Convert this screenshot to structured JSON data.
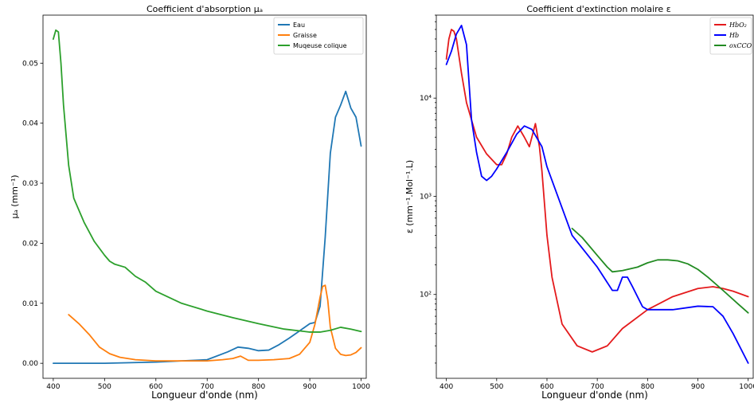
{
  "chart_data": [
    {
      "type": "line",
      "title": "Coefficient d'absorption μₐ",
      "xlabel": "Longueur d'onde (nm)",
      "ylabel": "μₐ (mm⁻¹)",
      "xlim": [
        380,
        1010
      ],
      "ylim": [
        -0.0025,
        0.058
      ],
      "yscale": "linear",
      "xticks": [
        400,
        500,
        600,
        700,
        800,
        900,
        1000
      ],
      "yticks": [
        0.0,
        0.01,
        0.02,
        0.03,
        0.04,
        0.05
      ],
      "ytick_labels": [
        "0.00",
        "0.01",
        "0.02",
        "0.03",
        "0.04",
        "0.05"
      ],
      "grid": false,
      "legend": "top-right",
      "series": [
        {
          "name": "Eau",
          "color": "#1f77b4",
          "x": [
            400,
            500,
            600,
            700,
            740,
            760,
            780,
            800,
            820,
            840,
            860,
            880,
            900,
            910,
            920,
            930,
            940,
            950,
            960,
            970,
            980,
            990,
            1000
          ],
          "y": [
            0.0,
            0.0,
            0.0002,
            0.0006,
            0.0019,
            0.0027,
            0.0025,
            0.0021,
            0.0022,
            0.0031,
            0.0042,
            0.0054,
            0.0066,
            0.0068,
            0.0095,
            0.021,
            0.035,
            0.041,
            0.043,
            0.0453,
            0.0425,
            0.041,
            0.0362
          ]
        },
        {
          "name": "Graisse",
          "color": "#ff7f0e",
          "x": [
            430,
            450,
            470,
            490,
            510,
            530,
            560,
            600,
            650,
            700,
            730,
            750,
            765,
            780,
            800,
            830,
            860,
            880,
            900,
            910,
            920,
            925,
            930,
            935,
            940,
            950,
            960,
            970,
            980,
            990,
            1000
          ],
          "y": [
            0.0081,
            0.0066,
            0.0048,
            0.0027,
            0.0016,
            0.001,
            0.0006,
            0.0004,
            0.0004,
            0.0004,
            0.0006,
            0.0008,
            0.0012,
            0.0005,
            0.0005,
            0.0006,
            0.0008,
            0.0015,
            0.0035,
            0.0065,
            0.011,
            0.0128,
            0.013,
            0.0105,
            0.006,
            0.0025,
            0.0015,
            0.0013,
            0.0014,
            0.0018,
            0.0026
          ]
        },
        {
          "name": "Muqeuse colique",
          "color": "#2ca02c",
          "x": [
            400,
            405,
            410,
            415,
            420,
            430,
            440,
            460,
            480,
            500,
            510,
            520,
            540,
            560,
            580,
            600,
            650,
            700,
            750,
            800,
            850,
            900,
            920,
            940,
            960,
            980,
            1000
          ],
          "y": [
            0.054,
            0.0555,
            0.0552,
            0.05,
            0.043,
            0.033,
            0.0275,
            0.0235,
            0.0203,
            0.018,
            0.017,
            0.0165,
            0.016,
            0.0145,
            0.0135,
            0.012,
            0.01,
            0.0087,
            0.0076,
            0.0066,
            0.0057,
            0.0052,
            0.0052,
            0.0055,
            0.006,
            0.0057,
            0.0053
          ]
        }
      ]
    },
    {
      "type": "line",
      "title": "Coefficient d'extinction molaire ε",
      "xlabel": "Longueur d'onde (nm)",
      "ylabel": "ε (mm⁻¹.Mol⁻¹.L)",
      "xlim": [
        380,
        1010
      ],
      "ylim": [
        14,
        70000
      ],
      "yscale": "log",
      "xticks": [
        400,
        500,
        600,
        700,
        800,
        900,
        1000
      ],
      "yticks": [
        100,
        1000,
        10000
      ],
      "ytick_labels": [
        "10²",
        "10³",
        "10⁴"
      ],
      "grid": false,
      "legend": "top-right",
      "series": [
        {
          "name": "HbO₂",
          "color": "#e41a1c",
          "x": [
            400,
            405,
            410,
            415,
            420,
            430,
            440,
            460,
            480,
            500,
            510,
            520,
            530,
            542,
            555,
            565,
            577,
            585,
            590,
            600,
            610,
            630,
            660,
            690,
            720,
            750,
            800,
            850,
            900,
            930,
            950,
            970,
            1000
          ],
          "y": [
            25000,
            40000,
            50000,
            48000,
            40000,
            18000,
            9000,
            4000,
            2700,
            2100,
            2100,
            2700,
            4000,
            5200,
            4000,
            3200,
            5500,
            3200,
            1800,
            400,
            150,
            50,
            30,
            26,
            30,
            45,
            70,
            95,
            115,
            120,
            115,
            108,
            95
          ]
        },
        {
          "name": "Hb",
          "color": "#0000ff",
          "x": [
            400,
            410,
            420,
            430,
            440,
            450,
            460,
            470,
            480,
            490,
            500,
            520,
            540,
            555,
            570,
            590,
            600,
            650,
            700,
            730,
            740,
            750,
            760,
            770,
            790,
            800,
            850,
            900,
            930,
            950,
            970,
            1000
          ],
          "y": [
            22000,
            30000,
            45000,
            55000,
            35000,
            6000,
            2800,
            1600,
            1450,
            1600,
            1900,
            2800,
            4300,
            5200,
            4800,
            3200,
            2000,
            400,
            190,
            110,
            110,
            150,
            150,
            120,
            75,
            70,
            70,
            76,
            75,
            60,
            40,
            20
          ]
        },
        {
          "name": "oxCCO",
          "color": "#228b22",
          "x": [
            650,
            670,
            700,
            720,
            730,
            750,
            780,
            800,
            820,
            840,
            860,
            880,
            900,
            920,
            950,
            980,
            1000
          ],
          "y": [
            470,
            380,
            250,
            190,
            170,
            175,
            190,
            210,
            225,
            225,
            220,
            205,
            180,
            150,
            110,
            80,
            65
          ]
        }
      ]
    }
  ]
}
